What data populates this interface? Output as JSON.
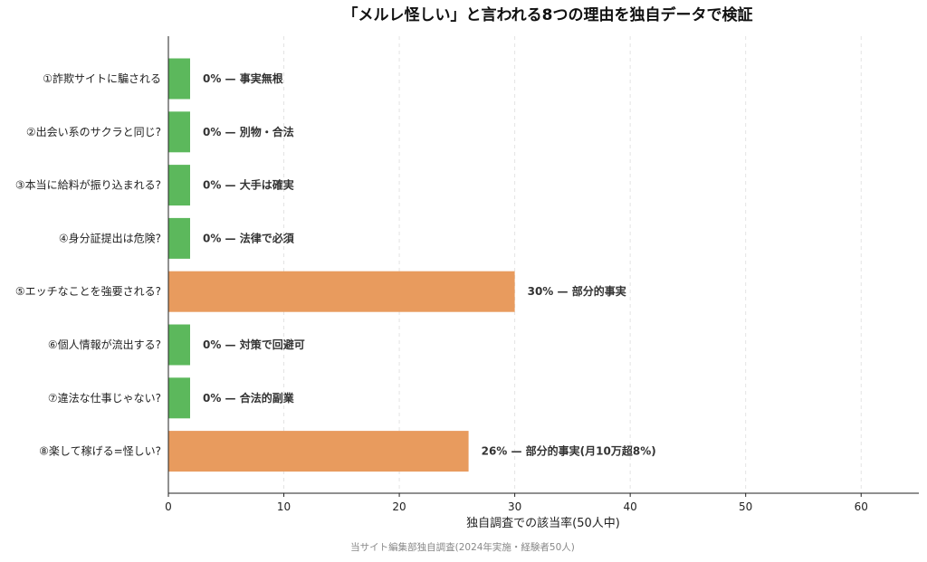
{
  "chart_data": {
    "type": "bar",
    "orientation": "horizontal",
    "title": "「メルレ怪しい」と言われる8つの理由を独自データで検証",
    "xlabel": "独自調査での該当率(50人中)",
    "ylabel": "",
    "xlim": [
      0,
      65
    ],
    "xticks": [
      0,
      10,
      20,
      30,
      40,
      50,
      60
    ],
    "grid": "vertical-dashed",
    "categories": [
      "①詐欺サイトに騙される",
      "②出会い系のサクラと同じ?",
      "③本当に給料が振り込まれる?",
      "④身分証提出は危険?",
      "⑤エッチなことを強要される?",
      "⑥個人情報が流出する?",
      "⑦違法な仕事じゃない?",
      "⑧楽して稼げる=怪しい?"
    ],
    "values": [
      0,
      0,
      0,
      0,
      30,
      0,
      0,
      26
    ],
    "bar_labels": [
      "0% — 事実無根",
      "0% — 別物・合法",
      "0% — 大手は確実",
      "0% — 法律で必須",
      "30% — 部分的事実",
      "0% — 対策で回避可",
      "0% — 合法的副業",
      "26% — 部分的事実(月10万超8%)"
    ],
    "colors": {
      "zero": "#5cb85c",
      "partial": "#e89b5e"
    },
    "source": "当サイト編集部独自調査(2024年実施・経験者50人)"
  }
}
